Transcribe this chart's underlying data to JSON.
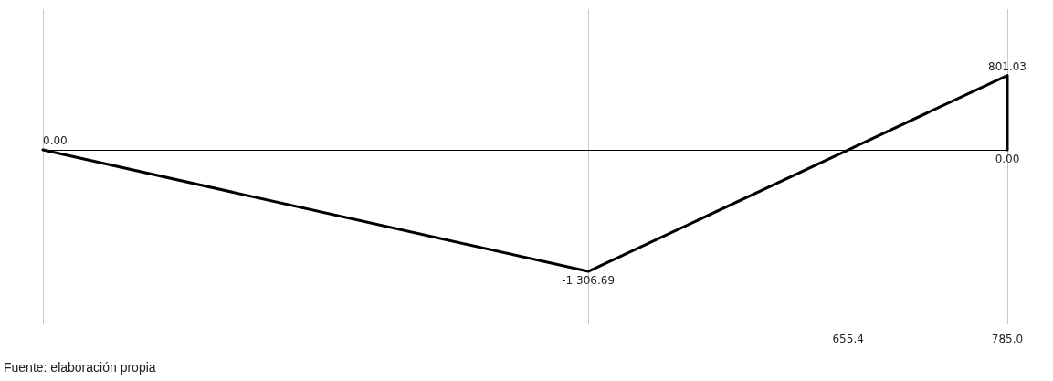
{
  "chart_data": {
    "type": "line",
    "x": [
      0,
      443.9,
      655.4,
      785,
      785
    ],
    "values": [
      0,
      -1306.69,
      0,
      801.03,
      0
    ],
    "color": "#000000",
    "value_labels": [
      "0.00",
      "-1 306.69",
      null,
      "801.03",
      "0.00"
    ],
    "xlim": [
      0,
      785
    ],
    "xticks": [
      {
        "value": 0,
        "label": null
      },
      {
        "value": 443.9,
        "label": null
      },
      655.4,
      {
        "value": 785,
        "label": "785.0"
      }
    ],
    "grid": "x",
    "marker": "none",
    "line_style": "solid",
    "ref_lines": [
      {
        "axis": "y",
        "value": 0,
        "color": "#000000"
      }
    ],
    "annotations": [
      "Fuente: elaboración propia"
    ]
  }
}
